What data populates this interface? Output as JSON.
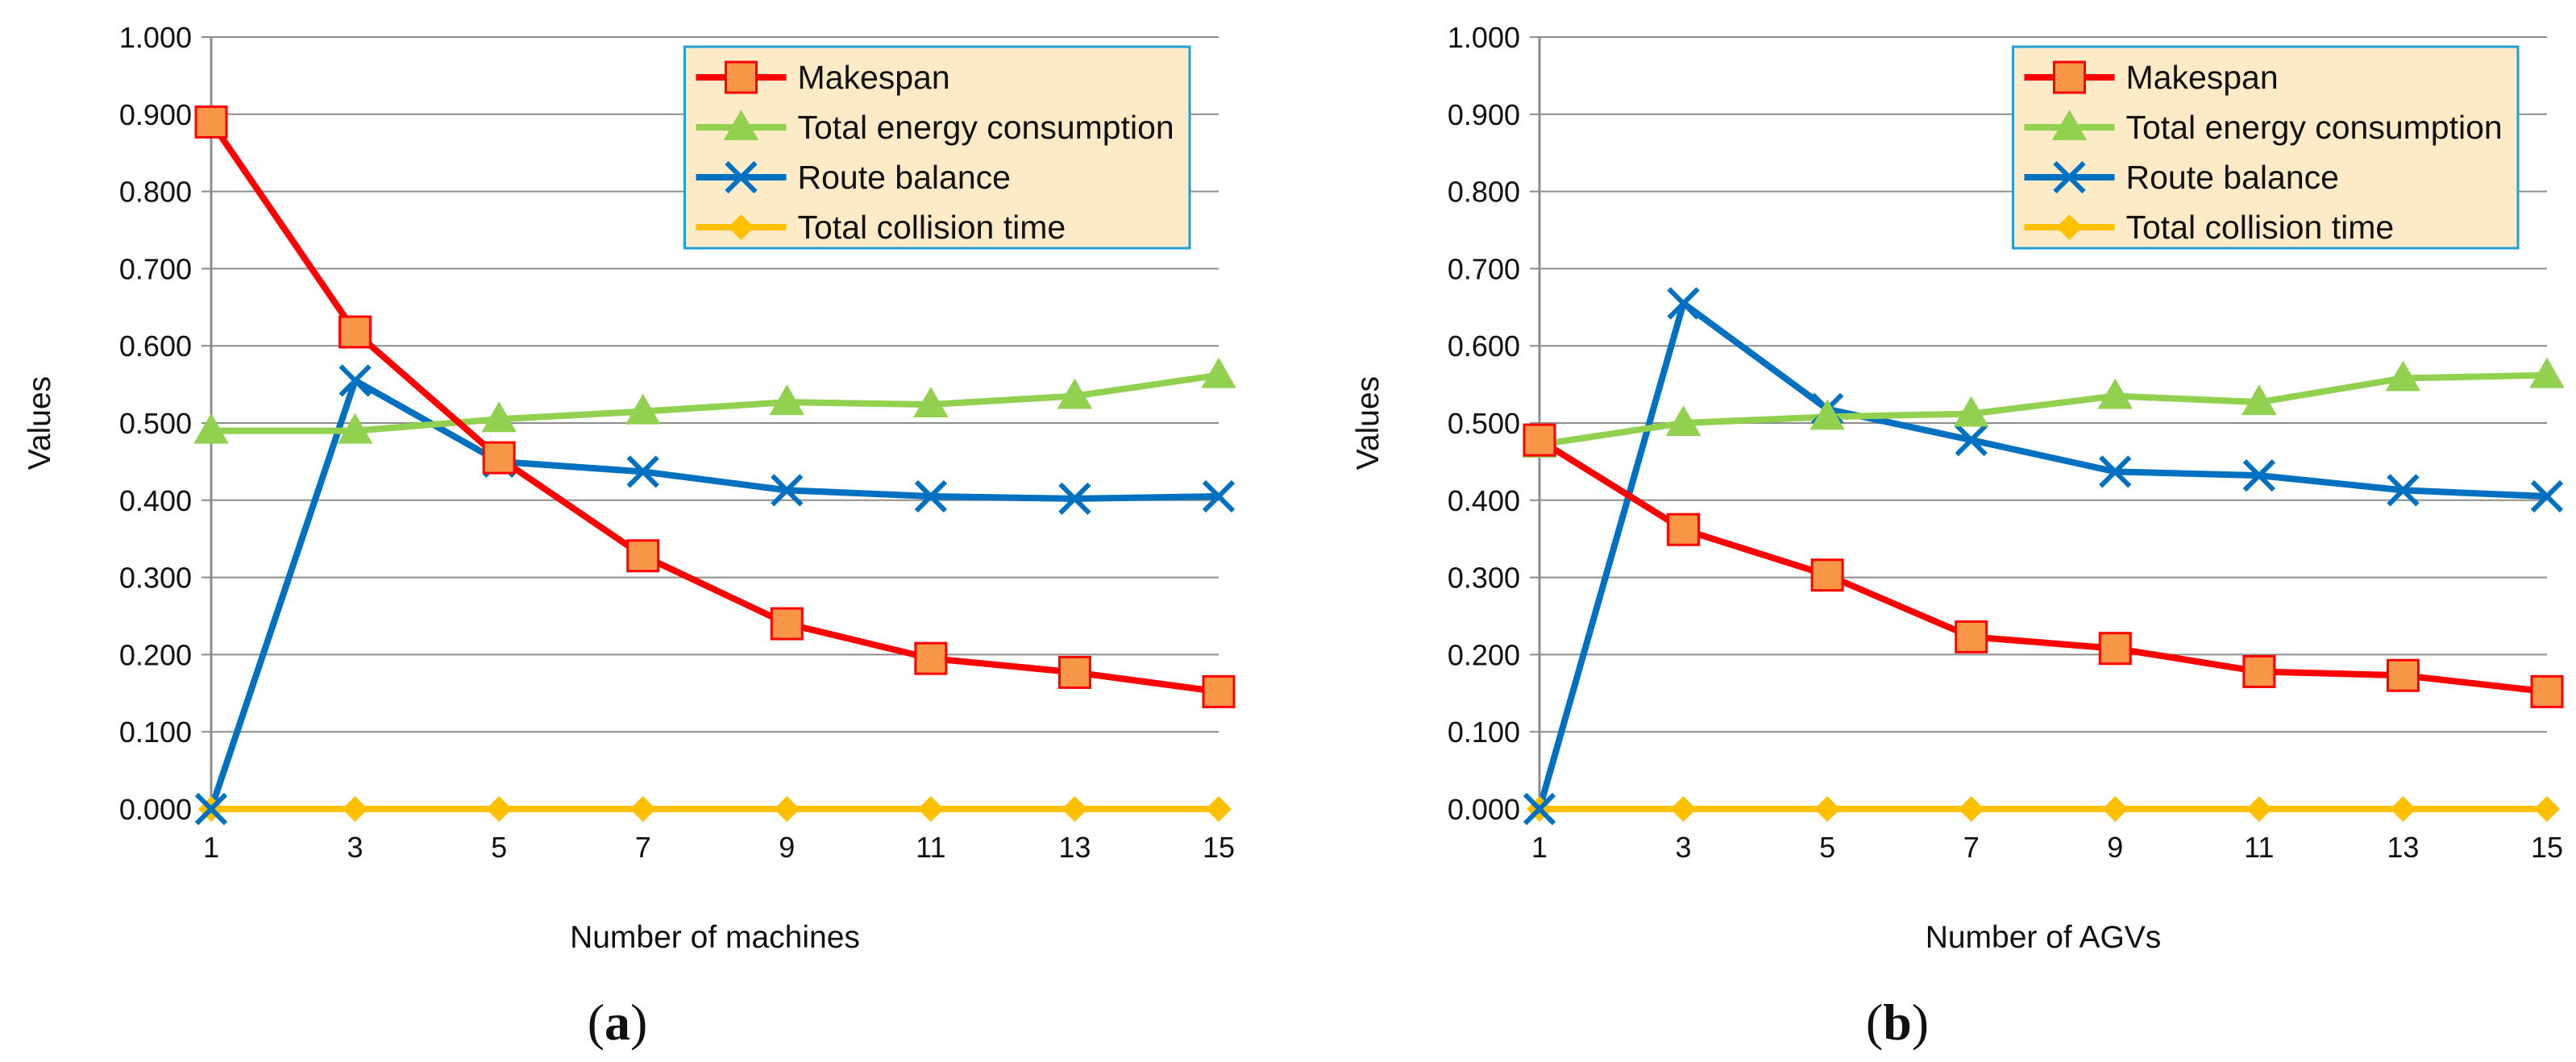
{
  "colors": {
    "makespan": "#ff0000",
    "energy": "#92d050",
    "route": "#0070c0",
    "collision": "#ffc000",
    "makespan_marker": "#f79646",
    "legend_bg": "#fdebc8",
    "legend_border": "#1f9fd8"
  },
  "chart_data": [
    {
      "type": "line",
      "panel_label": "a",
      "title": "",
      "xlabel": "Number of machines",
      "ylabel": "Values",
      "ylim": [
        0,
        1
      ],
      "y_ticks": [
        "0.000",
        "0.100",
        "0.200",
        "0.300",
        "0.400",
        "0.500",
        "0.600",
        "0.700",
        "0.800",
        "0.900",
        "1.000"
      ],
      "categories": [
        "1",
        "3",
        "5",
        "7",
        "9",
        "11",
        "13",
        "15"
      ],
      "legend": "top-right",
      "series": [
        {
          "name": "Makespan",
          "key": "makespan",
          "marker": "square",
          "values": [
            0.89,
            0.618,
            0.455,
            0.328,
            0.24,
            0.195,
            0.177,
            0.152
          ]
        },
        {
          "name": "Total energy consumption",
          "key": "energy",
          "marker": "triangle",
          "values": [
            0.49,
            0.49,
            0.505,
            0.515,
            0.527,
            0.524,
            0.535,
            0.562
          ]
        },
        {
          "name": "Route balance",
          "key": "route",
          "marker": "x",
          "values": [
            0.0,
            0.555,
            0.45,
            0.437,
            0.413,
            0.405,
            0.402,
            0.405
          ]
        },
        {
          "name": "Total collision time",
          "key": "collision",
          "marker": "diamond",
          "values": [
            0,
            0,
            0,
            0,
            0,
            0,
            0,
            0
          ]
        }
      ]
    },
    {
      "type": "line",
      "panel_label": "b",
      "title": "",
      "xlabel": "Number of AGVs",
      "ylabel": "Values",
      "ylim": [
        0,
        1
      ],
      "y_ticks": [
        "0.000",
        "0.100",
        "0.200",
        "0.300",
        "0.400",
        "0.500",
        "0.600",
        "0.700",
        "0.800",
        "0.900",
        "1.000"
      ],
      "categories": [
        "1",
        "3",
        "5",
        "7",
        "9",
        "11",
        "13",
        "15"
      ],
      "legend": "top-right",
      "series": [
        {
          "name": "Makespan",
          "key": "makespan",
          "marker": "square",
          "values": [
            0.478,
            0.362,
            0.303,
            0.223,
            0.208,
            0.178,
            0.173,
            0.152
          ]
        },
        {
          "name": "Total energy consumption",
          "key": "energy",
          "marker": "triangle",
          "values": [
            0.472,
            0.5,
            0.508,
            0.512,
            0.535,
            0.527,
            0.558,
            0.562
          ]
        },
        {
          "name": "Route balance",
          "key": "route",
          "marker": "x",
          "values": [
            0.0,
            0.655,
            0.518,
            0.478,
            0.437,
            0.432,
            0.413,
            0.405
          ]
        },
        {
          "name": "Total collision time",
          "key": "collision",
          "marker": "diamond",
          "values": [
            0,
            0,
            0,
            0,
            0,
            0,
            0,
            0
          ]
        }
      ]
    }
  ]
}
